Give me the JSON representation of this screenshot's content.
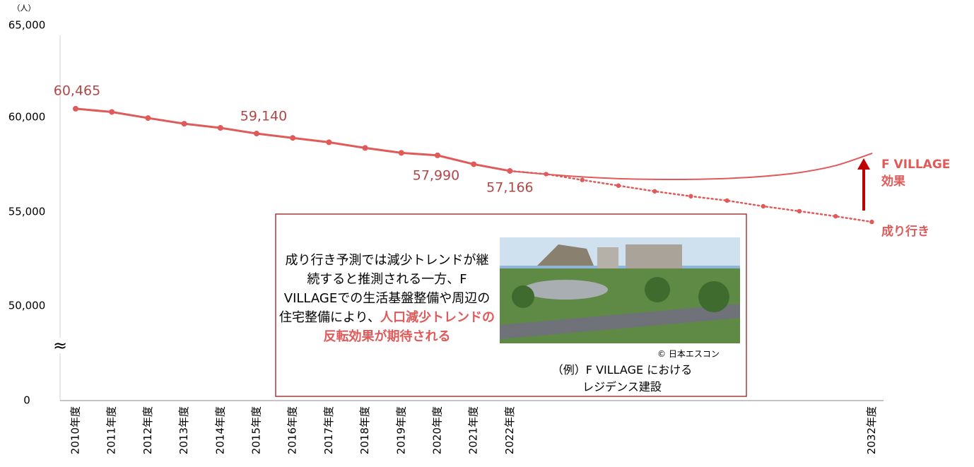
{
  "chart_data": {
    "type": "line",
    "y_unit": "（人）",
    "categories": [
      "2010年度",
      "2011年度",
      "2012年度",
      "2013年度",
      "2014年度",
      "2015年度",
      "2016年度",
      "2017年度",
      "2018年度",
      "2019年度",
      "2020年度",
      "2021年度",
      "2022年度",
      null,
      null,
      null,
      null,
      null,
      null,
      null,
      null,
      null,
      "2032年度"
    ],
    "ylim": [
      0,
      65000
    ],
    "yticks": [
      {
        "value": 0,
        "label": "0"
      },
      {
        "value": 50000,
        "label": "50,000"
      },
      {
        "value": 55000,
        "label": "55,000"
      },
      {
        "value": 60000,
        "label": "60,000"
      },
      {
        "value": 65000,
        "label": "65,000"
      }
    ],
    "axis_break_symbol": "≈",
    "series": [
      {
        "color": "#e05a5a",
        "style": "solid",
        "markers": true,
        "values": [
          60465,
          60290,
          59960,
          59660,
          59440,
          59140,
          58910,
          58680,
          58380,
          58120,
          57990,
          57520,
          57166,
          null,
          null,
          null,
          null,
          null,
          null,
          null,
          null,
          null,
          null
        ],
        "value_labels": [
          "60,465",
          null,
          null,
          null,
          null,
          "59,140",
          null,
          null,
          null,
          null,
          "57,990",
          null,
          "57,166",
          null,
          null,
          null,
          null,
          null,
          null,
          null,
          null,
          null,
          null
        ]
      },
      {
        "name": "成り行き",
        "color": "#e05a5a",
        "style": "dotted",
        "markers": true,
        "values": [
          null,
          null,
          null,
          null,
          null,
          null,
          null,
          null,
          null,
          null,
          null,
          null,
          57166,
          57000,
          56690,
          56390,
          56090,
          55830,
          55600,
          55300,
          55040,
          54770,
          54470
        ]
      },
      {
        "name": "F VILLAGE 効果",
        "color": "#e05a5a",
        "style": "smooth",
        "markers": false,
        "values": [
          null,
          null,
          null,
          null,
          null,
          null,
          null,
          null,
          null,
          null,
          null,
          null,
          57166,
          56990,
          56850,
          56760,
          56720,
          56720,
          56770,
          56880,
          57080,
          57450,
          58090
        ]
      }
    ],
    "annotation": {
      "text": "成り行き予測では減少トレンドが継続すると推測される一方、F VILLAGEでの生活基盤整備や周辺の住宅整備により、",
      "highlight": "人口減少トレンドの反転効果が期待される",
      "credit": "© 日本エスコン",
      "caption": "（例）F VILLAGE における レジデンス建設"
    }
  }
}
